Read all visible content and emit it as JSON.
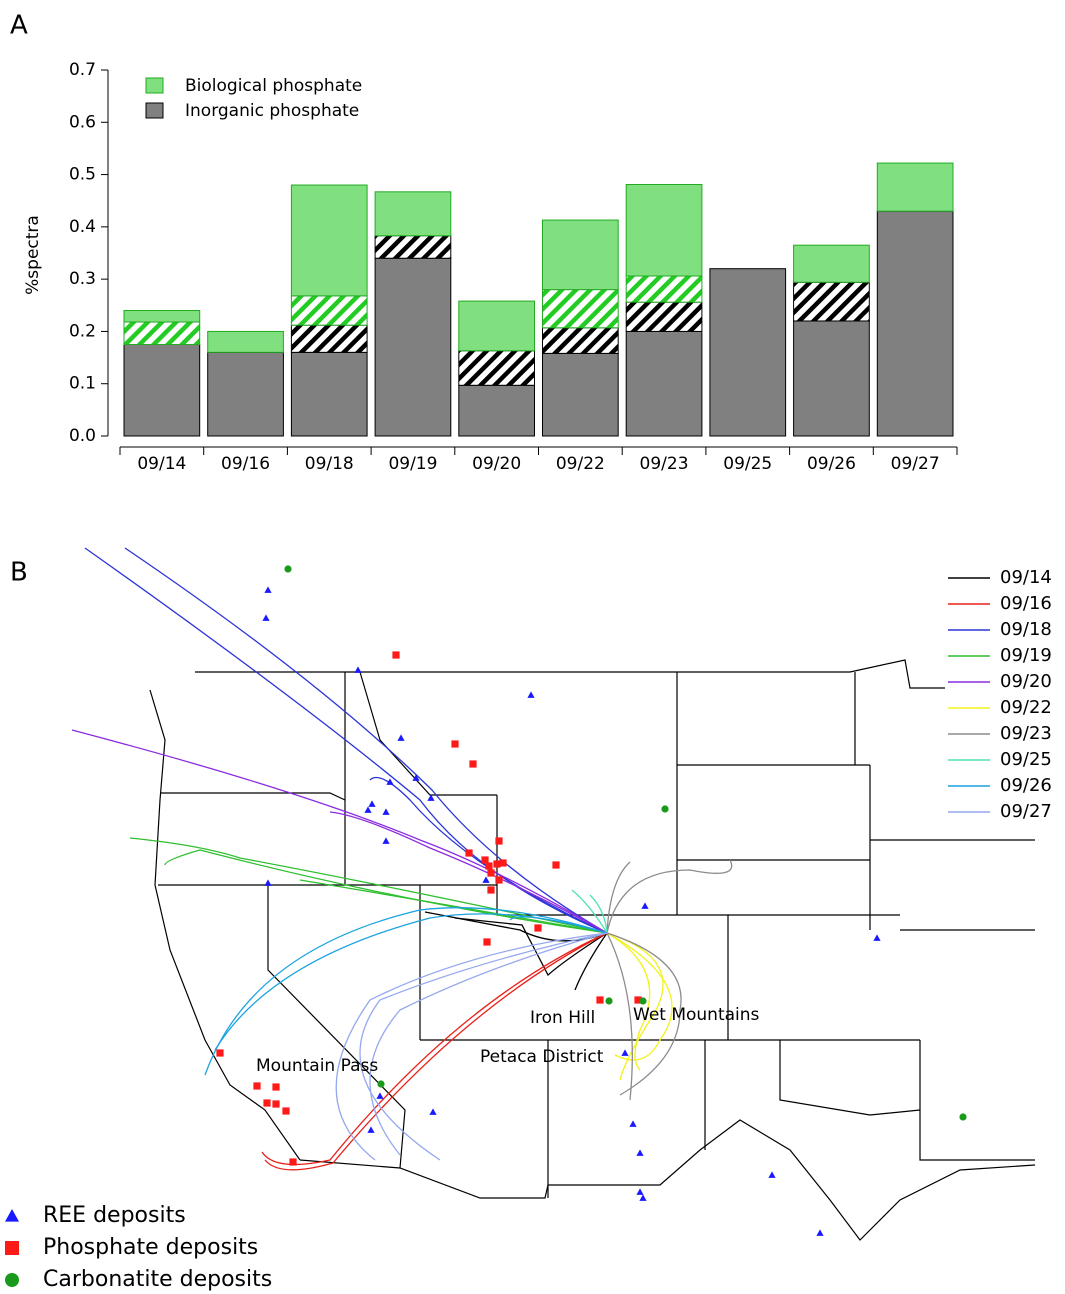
{
  "panels": {
    "a": "A",
    "b": "B"
  },
  "chart_data": {
    "type": "stacked_bar",
    "y_label": "%spectra",
    "categories": [
      "09/14",
      "09/16",
      "09/18",
      "09/19",
      "09/20",
      "09/22",
      "09/23",
      "09/25",
      "09/26",
      "09/27"
    ],
    "series": [
      {
        "name": "Inorganic phosphate",
        "color": "#808080",
        "values": [
          0.175,
          0.16,
          0.16,
          0.34,
          0.097,
          0.158,
          0.2,
          0.32,
          0.22,
          0.43
        ]
      },
      {
        "color": "#000000",
        "hatch": true,
        "values": [
          0,
          0,
          0.052,
          0.043,
          0.066,
          0.049,
          0.056,
          0,
          0.074,
          0
        ]
      },
      {
        "color": "#22cc22",
        "hatch": true,
        "values": [
          0.043,
          0,
          0.056,
          0,
          0,
          0.073,
          0.05,
          0,
          0,
          0
        ]
      },
      {
        "name": "Biological phosphate",
        "color": "#80e080",
        "values": [
          0.022,
          0.04,
          0.212,
          0.084,
          0.095,
          0.133,
          0.175,
          0,
          0.071,
          0.092
        ]
      }
    ],
    "ylim": [
      0,
      0.7
    ],
    "yticks": [
      {
        "value": 0,
        "label": "0.0"
      },
      0.1,
      0.2,
      0.3,
      0.4,
      0.5,
      0.6,
      0.7
    ],
    "legend": "upper left"
  },
  "map": {
    "trajectories": [
      {
        "name": "09/14",
        "color": "#000000"
      },
      {
        "name": "09/16",
        "color": "#e8211a"
      },
      {
        "name": "09/18",
        "color": "#2a35d8"
      },
      {
        "name": "09/19",
        "color": "#2fbf2f"
      },
      {
        "name": "09/20",
        "color": "#8a2be2"
      },
      {
        "name": "09/22",
        "color": "#f2f21a"
      },
      {
        "name": "09/23",
        "color": "#8c8c8c"
      },
      {
        "name": "09/25",
        "color": "#4fe3b0"
      },
      {
        "name": "09/26",
        "color": "#1aa3e0"
      },
      {
        "name": "09/27",
        "color": "#94a8ee"
      }
    ],
    "places": [
      "Iron Hill",
      "Wet Mountains",
      "Petaca District",
      "Mountain Pass"
    ],
    "deposits": [
      {
        "name": "REE deposits",
        "color": "#1a1aff",
        "marker": "triangle"
      },
      {
        "name": "Phosphate deposits",
        "color": "#ff1a1a",
        "marker": "square"
      },
      {
        "name": "Carbonatite deposits",
        "color": "#1a9a1a",
        "marker": "circle"
      }
    ]
  }
}
